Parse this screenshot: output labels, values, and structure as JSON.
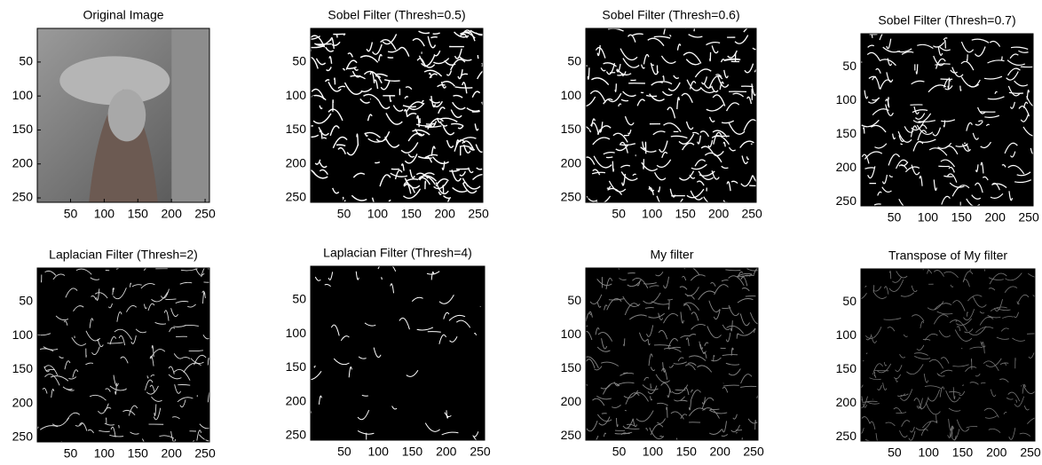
{
  "chart_data": [
    {
      "type": "image",
      "title": "Original Image",
      "xlim": [
        0.5,
        256.5
      ],
      "ylim": [
        256.5,
        0.5
      ],
      "xticks": [
        50,
        100,
        150,
        200,
        250
      ],
      "yticks": [
        50,
        100,
        150,
        200,
        250
      ],
      "colormap": "gray"
    },
    {
      "type": "image",
      "title": "Sobel Filter (Thresh=0.5)",
      "xlim": [
        0.5,
        256.5
      ],
      "ylim": [
        256.5,
        0.5
      ],
      "xticks": [
        50,
        100,
        150,
        200,
        250
      ],
      "yticks": [
        50,
        100,
        150,
        200,
        250
      ],
      "colormap": "binary"
    },
    {
      "type": "image",
      "title": "Sobel Filter (Thresh=0.6)",
      "xlim": [
        0.5,
        256.5
      ],
      "ylim": [
        256.5,
        0.5
      ],
      "xticks": [
        50,
        100,
        150,
        200,
        250
      ],
      "yticks": [
        50,
        100,
        150,
        200,
        250
      ],
      "colormap": "binary"
    },
    {
      "type": "image",
      "title": "Sobel Filter (Thresh=0.7)",
      "xlim": [
        0.5,
        256.5
      ],
      "ylim": [
        256.5,
        0.5
      ],
      "xticks": [
        50,
        100,
        150,
        200,
        250
      ],
      "yticks": [
        50,
        100,
        150,
        200,
        250
      ],
      "colormap": "binary"
    },
    {
      "type": "image",
      "title": "Laplacian Filter (Thresh=2)",
      "xlim": [
        0.5,
        256.5
      ],
      "ylim": [
        256.5,
        0.5
      ],
      "xticks": [
        50,
        100,
        150,
        200,
        250
      ],
      "yticks": [
        50,
        100,
        150,
        200,
        250
      ],
      "colormap": "binary"
    },
    {
      "type": "image",
      "title": "Laplacian Filter (Thresh=4)",
      "xlim": [
        0.5,
        256.5
      ],
      "ylim": [
        256.5,
        0.5
      ],
      "xticks": [
        50,
        100,
        150,
        200,
        250
      ],
      "yticks": [
        50,
        100,
        150,
        200,
        250
      ],
      "colormap": "binary"
    },
    {
      "type": "image",
      "title": "My filter",
      "xlim": [
        0.5,
        256.5
      ],
      "ylim": [
        256.5,
        0.5
      ],
      "xticks": [
        50,
        100,
        150,
        200,
        250
      ],
      "yticks": [
        50,
        100,
        150,
        200,
        250
      ],
      "colormap": "gray"
    },
    {
      "type": "image",
      "title": "Transpose of My filter",
      "xlim": [
        0.5,
        256.5
      ],
      "ylim": [
        256.5,
        0.5
      ],
      "xticks": [
        50,
        100,
        150,
        200,
        250
      ],
      "yticks": [
        50,
        100,
        150,
        200,
        250
      ],
      "colormap": "gray"
    }
  ]
}
